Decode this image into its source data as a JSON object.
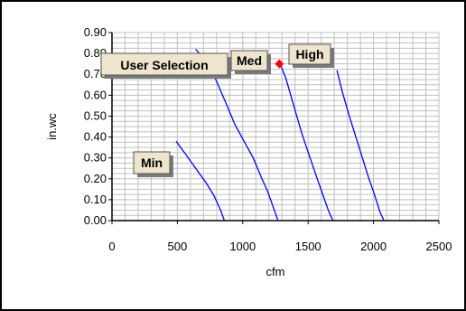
{
  "chart_data": {
    "type": "line",
    "xlabel": "cfm",
    "ylabel": "in.wc",
    "xlim": [
      0,
      2500
    ],
    "ylim": [
      0,
      0.9
    ],
    "xticks": [
      "0",
      "500",
      "1000",
      "1500",
      "2000",
      "2500"
    ],
    "yticks": [
      "0.00",
      "0.10",
      "0.20",
      "0.30",
      "0.40",
      "0.50",
      "0.60",
      "0.70",
      "0.80",
      "0.90"
    ],
    "grid": true,
    "line_color": "#0000ff",
    "marker_color": "#ff0000",
    "series": [
      {
        "name": "Min",
        "points": [
          [
            490,
            0.38
          ],
          [
            560,
            0.32
          ],
          [
            640,
            0.25
          ],
          [
            720,
            0.18
          ],
          [
            780,
            0.12
          ],
          [
            830,
            0.05
          ],
          [
            860,
            0.0
          ]
        ]
      },
      {
        "name": "",
        "points": [
          [
            640,
            0.82
          ],
          [
            720,
            0.76
          ],
          [
            790,
            0.68
          ],
          [
            860,
            0.58
          ],
          [
            940,
            0.46
          ],
          [
            1010,
            0.38
          ],
          [
            1080,
            0.3
          ],
          [
            1140,
            0.21
          ],
          [
            1190,
            0.14
          ],
          [
            1230,
            0.07
          ],
          [
            1270,
            0.0
          ]
        ]
      },
      {
        "name": "Med",
        "points": [
          [
            1280,
            0.76
          ],
          [
            1330,
            0.68
          ],
          [
            1390,
            0.55
          ],
          [
            1450,
            0.42
          ],
          [
            1510,
            0.31
          ],
          [
            1570,
            0.2
          ],
          [
            1620,
            0.11
          ],
          [
            1660,
            0.04
          ],
          [
            1690,
            0.0
          ]
        ]
      },
      {
        "name": "High",
        "points": [
          [
            1720,
            0.72
          ],
          [
            1760,
            0.62
          ],
          [
            1810,
            0.51
          ],
          [
            1860,
            0.41
          ],
          [
            1910,
            0.31
          ],
          [
            1960,
            0.21
          ],
          [
            2010,
            0.12
          ],
          [
            2050,
            0.04
          ],
          [
            2080,
            0.0
          ]
        ]
      }
    ],
    "marker": {
      "x": 1280,
      "y": 0.75
    },
    "callouts": {
      "user_selection": "User Selection",
      "min": "Min",
      "med": "Med",
      "high": "High"
    }
  }
}
